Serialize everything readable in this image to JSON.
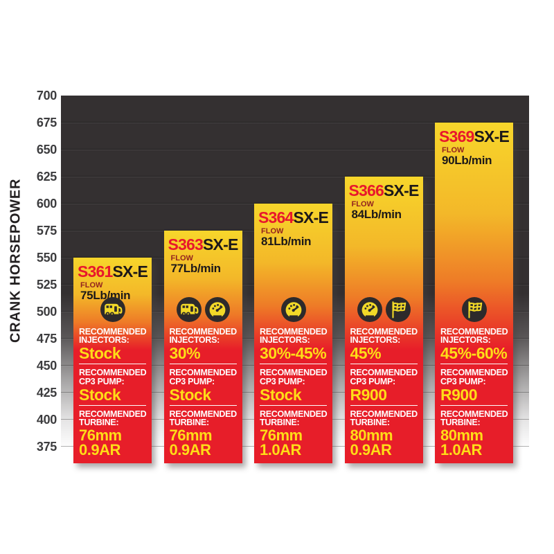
{
  "y_axis": {
    "label": "CRANK HORSEPOWER",
    "ticks": [
      "700",
      "675",
      "650",
      "625",
      "600",
      "575",
      "550",
      "525",
      "500",
      "475",
      "450",
      "425",
      "400",
      "375"
    ]
  },
  "chart_data": {
    "type": "bar",
    "title": "",
    "xlabel": "",
    "ylabel": "CRANK HORSEPOWER",
    "ylim": [
      375,
      700
    ],
    "grid": "horizontal",
    "legend": "none",
    "categories": [
      "S361SX-E",
      "S363SX-E",
      "S364SX-E",
      "S366SX-E",
      "S369SX-E"
    ],
    "values": [
      550,
      575,
      600,
      625,
      675
    ],
    "flows_lb_min": [
      75,
      77,
      81,
      84,
      90
    ]
  },
  "bars": [
    {
      "model": "S361",
      "model_suffix": "SX-E",
      "hp": 550,
      "flow_label": "FLOW",
      "flow": "75Lb/min",
      "icons": [
        "camper-icon"
      ],
      "injectors_label": "RECOMMENDED INJECTORS:",
      "injectors_value": "Stock",
      "pump_label": "RECOMMENDED CP3 PUMP:",
      "pump_value": "Stock",
      "turbine_label": "RECOMMENDED TURBINE:",
      "turbine_mm": "76mm",
      "turbine_ar": "0.9AR"
    },
    {
      "model": "S363",
      "model_suffix": "SX-E",
      "hp": 575,
      "flow_label": "FLOW",
      "flow": "77Lb/min",
      "icons": [
        "camper-icon",
        "gauge-icon"
      ],
      "injectors_label": "RECOMMENDED INJECTORS:",
      "injectors_value": "30%",
      "pump_label": "RECOMMENDED CP3 PUMP:",
      "pump_value": "Stock",
      "turbine_label": "RECOMMENDED TURBINE:",
      "turbine_mm": "76mm",
      "turbine_ar": "0.9AR"
    },
    {
      "model": "S364",
      "model_suffix": "SX-E",
      "hp": 600,
      "flow_label": "FLOW",
      "flow": "81Lb/min",
      "icons": [
        "gauge-icon"
      ],
      "injectors_label": "RECOMMENDED INJECTORS:",
      "injectors_value": "30%-45%",
      "pump_label": "RECOMMENDED CP3 PUMP:",
      "pump_value": "Stock",
      "turbine_label": "RECOMMENDED TURBINE:",
      "turbine_mm": "76mm",
      "turbine_ar": "1.0AR"
    },
    {
      "model": "S366",
      "model_suffix": "SX-E",
      "hp": 625,
      "flow_label": "FLOW",
      "flow": "84Lb/min",
      "icons": [
        "gauge-icon",
        "flag-icon"
      ],
      "injectors_label": "RECOMMENDED INJECTORS:",
      "injectors_value": "45%",
      "pump_label": "RECOMMENDED CP3 PUMP:",
      "pump_value": "R900",
      "turbine_label": "RECOMMENDED TURBINE:",
      "turbine_mm": "80mm",
      "turbine_ar": "0.9AR"
    },
    {
      "model": "S369",
      "model_suffix": "SX-E",
      "hp": 675,
      "flow_label": "FLOW",
      "flow": "90Lb/min",
      "icons": [
        "flag-icon"
      ],
      "injectors_label": "RECOMMENDED INJECTORS:",
      "injectors_value": "45%-60%",
      "pump_label": "RECOMMENDED CP3 PUMP:",
      "pump_value": "R900",
      "turbine_label": "RECOMMENDED TURBINE:",
      "turbine_mm": "80mm",
      "turbine_ar": "1.0AR"
    }
  ],
  "colors": {
    "plot_background": "#343031",
    "bar_gradient_top": "#f7d62b",
    "bar_gradient_mid": "#ee7b27",
    "bar_red": "#e71e29",
    "model_red": "#e8172c",
    "model_black": "#1c1819",
    "value_yellow": "#ffdd17",
    "label_white": "#ffffff",
    "icon_circle": "#2d2a2b",
    "icon_glyph": "#f2d928",
    "axis_text": "#3c3c3e"
  }
}
